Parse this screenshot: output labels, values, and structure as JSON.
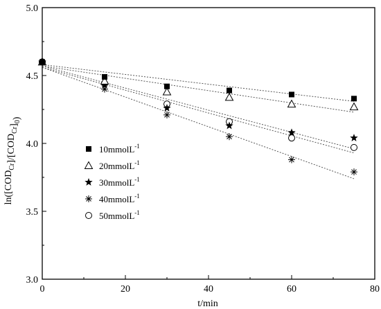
{
  "chart_data": {
    "type": "scatter",
    "xlabel": "t/min",
    "ylabel": "ln([COD_Cr]/[COD_Cr]_0)",
    "xlim": [
      0,
      80
    ],
    "ylim": [
      3.0,
      5.0
    ],
    "xticks": [
      0,
      20,
      40,
      60,
      80
    ],
    "yticks": [
      3.0,
      3.5,
      4.0,
      4.5,
      5.0
    ],
    "xtick_labels": [
      "0",
      "20",
      "40",
      "60",
      "80"
    ],
    "ytick_labels": [
      "3.0",
      "3.5",
      "4.0",
      "4.5",
      "5.0"
    ],
    "grid": false,
    "legend_position": "left-center",
    "series": [
      {
        "name": "10mmolL-1",
        "label_base": "10mmolL",
        "label_sup": "-1",
        "marker": "square-filled",
        "x": [
          0,
          15,
          30,
          45,
          60,
          75
        ],
        "y": [
          4.6,
          4.49,
          4.42,
          4.39,
          4.36,
          4.33
        ],
        "fit": [
          4.58,
          4.31
        ]
      },
      {
        "name": "20mmolL-1",
        "label_base": "20mmolL",
        "label_sup": "-1",
        "marker": "triangle-open",
        "x": [
          0,
          15,
          30,
          45,
          60,
          75
        ],
        "y": [
          4.6,
          4.46,
          4.38,
          4.34,
          4.29,
          4.27
        ],
        "fit": [
          4.57,
          4.23
        ]
      },
      {
        "name": "30mmolL-1",
        "label_base": "30mmolL",
        "label_sup": "-1",
        "marker": "star-filled",
        "x": [
          0,
          15,
          30,
          45,
          60,
          75
        ],
        "y": [
          4.6,
          4.43,
          4.26,
          4.13,
          4.08,
          4.04
        ],
        "fit": [
          4.57,
          3.96
        ]
      },
      {
        "name": "40mmolL-1",
        "label_base": "40mmolL",
        "label_sup": "-1",
        "marker": "asterisk",
        "x": [
          0,
          15,
          30,
          45,
          60,
          75
        ],
        "y": [
          4.6,
          4.4,
          4.21,
          4.05,
          3.88,
          3.79
        ],
        "fit": [
          4.56,
          3.74
        ]
      },
      {
        "name": "50mmolL-1",
        "label_base": "50mmolL",
        "label_sup": "-1",
        "marker": "circle-open",
        "x": [
          0,
          15,
          30,
          45,
          60,
          75
        ],
        "y": [
          4.6,
          4.44,
          4.29,
          4.16,
          4.04,
          3.97
        ],
        "fit": [
          4.56,
          3.93
        ]
      }
    ]
  }
}
